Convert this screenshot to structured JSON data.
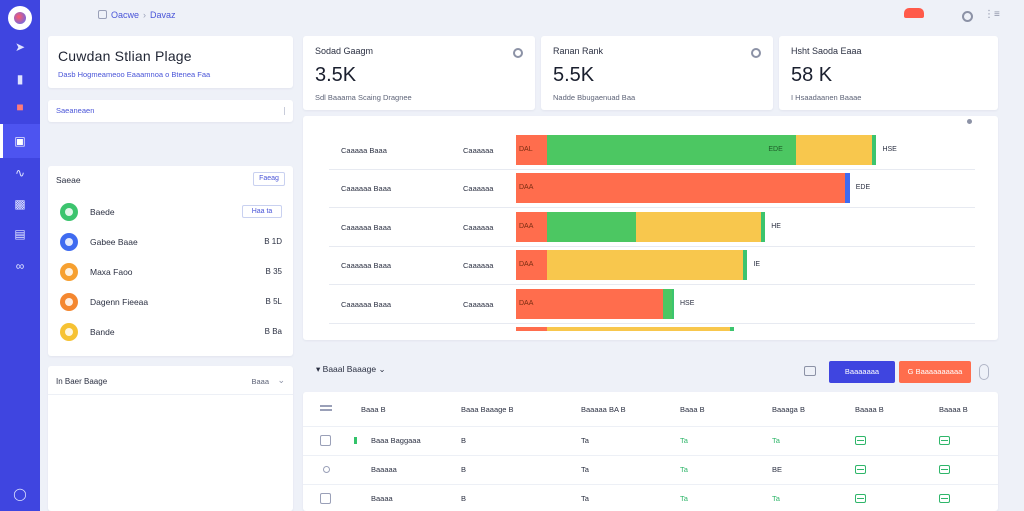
{
  "breadcrumb": {
    "root": "Oacwe",
    "current": "Davaz"
  },
  "page": {
    "title": "Cuwdan Stlian Plage",
    "subtitle": "Dasb Hogmeameoo Eaaamnoa o Btenea Faa"
  },
  "stats": [
    {
      "label": "Sodad Gaagm",
      "value": "3.5K",
      "sub": "Sdl Baaama Scaing Dragnee"
    },
    {
      "label": "Ranan Rank",
      "value": "5.5K",
      "sub": "Nadde Bbugaenuad Baa"
    },
    {
      "label": "Hsht Saoda Eaaa",
      "value": "58 K",
      "sub": "I Hsaadaanen Baaae"
    }
  ],
  "search": {
    "placeholder": "Saeaneaen"
  },
  "tasks": {
    "header": "Saeae",
    "header_button": "Faeag",
    "items": [
      {
        "name": "Baede",
        "value": "Haa ta",
        "color": "#3cc46e",
        "pill": true
      },
      {
        "name": "Gabee Baae",
        "value": "B 1D",
        "color": "#3f6bf0",
        "pill": false
      },
      {
        "name": "Maxa Faoo",
        "value": "B 35",
        "color": "#f6a030",
        "pill": false
      },
      {
        "name": "Dagenn Fieeaa",
        "value": "B 5L",
        "color": "#f4872f",
        "pill": false
      },
      {
        "name": "Bande",
        "value": "B Ba",
        "color": "#f6c233",
        "pill": false
      }
    ]
  },
  "notes": {
    "header": "In Baer Baage",
    "right": "Baaa"
  },
  "chart_data": {
    "type": "bar",
    "stacked": true,
    "orientation": "horizontal",
    "categories": [
      [
        "Caaaaa Baaa",
        "Caaaaaa"
      ],
      [
        "Caaaaaa Baaa",
        "Caaaaaa"
      ],
      [
        "Caaaaaa Baaa",
        "Caaaaaa"
      ],
      [
        "Caaaaaa Baaa",
        "Caaaaaa"
      ],
      [
        "Caaaaaa Baaa",
        "Caaaaaa"
      ],
      [
        "",
        ""
      ]
    ],
    "series": [
      {
        "name": "Orange",
        "color": "#ff6d4d",
        "values": [
          7,
          74,
          7,
          7,
          33,
          7
        ],
        "labels": [
          "DAL",
          "DAA",
          "DAA",
          "DAA",
          "DAA",
          ""
        ]
      },
      {
        "name": "Green",
        "color": "#4cc762",
        "values": [
          56,
          0,
          20,
          0,
          2,
          0
        ],
        "labels": [
          "EDE",
          "",
          "",
          "",
          "",
          ""
        ]
      },
      {
        "name": "Yellow",
        "color": "#f8c74d",
        "values": [
          17,
          0,
          28,
          44,
          0,
          41
        ],
        "labels": [
          "",
          "",
          "",
          "",
          "",
          ""
        ]
      },
      {
        "name": "Accent",
        "color": "#3cc46e",
        "values": [
          1,
          1,
          1,
          1,
          0.5,
          1
        ],
        "labels": [
          "",
          "",
          "",
          "",
          "",
          ""
        ]
      }
    ],
    "end_labels": [
      "HSE",
      "EDE",
      "HE",
      "IE",
      "HSE",
      ""
    ],
    "xlim": [
      0,
      100
    ],
    "grid": false
  },
  "table": {
    "filter_label": "Baaal Baaage",
    "button_blue": "Baaaaaaa",
    "button_orange": "G Baaaaaaaaaa",
    "columns": [
      "Baaa B",
      "Baaa Baaage B",
      "Baaaaa BA B",
      "Baaa B",
      "Baaaga B",
      "Baaaa B",
      "Baaaa B"
    ],
    "rows": [
      {
        "name": "Baaa Baggaaa",
        "c1": "B",
        "c2": "Ta",
        "c3": "Ta",
        "c4": "Ta"
      },
      {
        "name": "Baaaaa",
        "c1": "B",
        "c2": "Ta",
        "c3": "Ta",
        "c4": "BE"
      },
      {
        "name": "Baaaa",
        "c1": "B",
        "c2": "Ta",
        "c3": "Ta",
        "c4": "Ta"
      }
    ]
  }
}
